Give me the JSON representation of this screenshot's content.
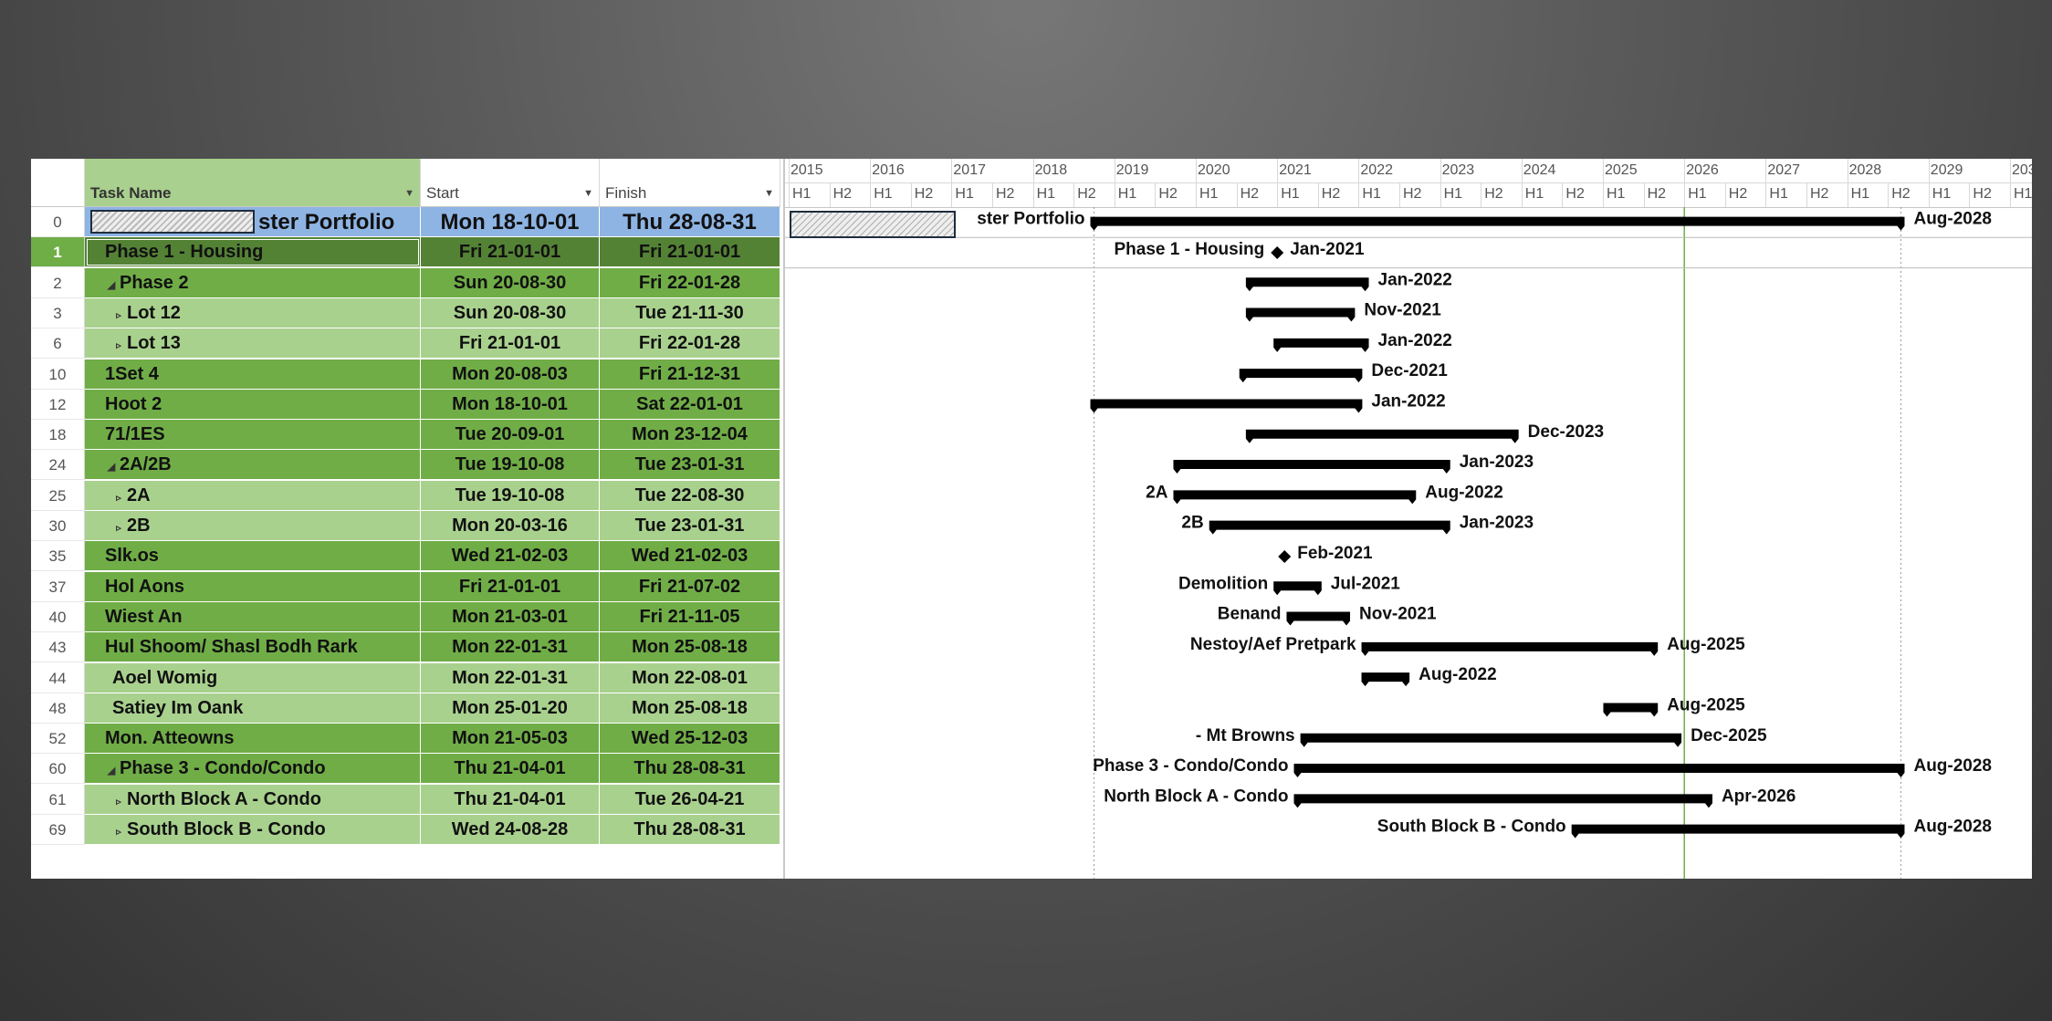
{
  "columns": {
    "task_name": "Task Name",
    "start": "Start",
    "finish": "Finish"
  },
  "timescale": {
    "years": [
      "2015",
      "2016",
      "2017",
      "2018",
      "2019",
      "2020",
      "2021",
      "2022",
      "2023",
      "2024",
      "2025",
      "2026",
      "2027",
      "2028",
      "2029",
      "203"
    ],
    "halves": [
      "H1",
      "H2"
    ]
  },
  "colors": {
    "summary": "#8eb4e3",
    "dark_green": "#70ad47",
    "light_green": "#a9d18e",
    "selected": "#548235",
    "header_green": "#a9d08e"
  },
  "rows": [
    {
      "id": "0",
      "name": "ster Portfolio",
      "start": "Mon 18-10-01",
      "finish": "Thu 28-08-31",
      "style": "summary",
      "indent": 0,
      "toggle": ""
    },
    {
      "id": "1",
      "name": "Phase 1 - Housing",
      "start": "Fri 21-01-01",
      "finish": "Fri 21-01-01",
      "style": "selected",
      "indent": 1,
      "toggle": ""
    },
    {
      "id": "2",
      "name": "Phase 2",
      "start": "Sun 20-08-30",
      "finish": "Fri 22-01-28",
      "style": "dark",
      "indent": 1,
      "toggle": "◢"
    },
    {
      "id": "3",
      "name": "Lot 12",
      "start": "Sun 20-08-30",
      "finish": "Tue 21-11-30",
      "style": "light",
      "indent": 2,
      "toggle": "▹"
    },
    {
      "id": "6",
      "name": "Lot 13",
      "start": "Fri 21-01-01",
      "finish": "Fri 22-01-28",
      "style": "light",
      "indent": 2,
      "toggle": "▹"
    },
    {
      "id": "10",
      "name": "1Set 4",
      "start": "Mon 20-08-03",
      "finish": "Fri 21-12-31",
      "style": "dark",
      "indent": 1,
      "toggle": ""
    },
    {
      "id": "12",
      "name": "Hoot 2",
      "start": "Mon 18-10-01",
      "finish": "Sat 22-01-01",
      "style": "dark",
      "indent": 1,
      "toggle": ""
    },
    {
      "id": "18",
      "name": "71/1ES",
      "start": "Tue 20-09-01",
      "finish": "Mon 23-12-04",
      "style": "dark",
      "indent": 1,
      "toggle": ""
    },
    {
      "id": "24",
      "name": "2A/2B",
      "start": "Tue 19-10-08",
      "finish": "Tue 23-01-31",
      "style": "dark",
      "indent": 1,
      "toggle": "◢"
    },
    {
      "id": "25",
      "name": "2A",
      "start": "Tue 19-10-08",
      "finish": "Tue 22-08-30",
      "style": "light",
      "indent": 2,
      "toggle": "▹"
    },
    {
      "id": "30",
      "name": "2B",
      "start": "Mon 20-03-16",
      "finish": "Tue 23-01-31",
      "style": "light",
      "indent": 2,
      "toggle": "▹"
    },
    {
      "id": "35",
      "name": "Slk.os",
      "start": "Wed 21-02-03",
      "finish": "Wed 21-02-03",
      "style": "dark",
      "indent": 1,
      "toggle": ""
    },
    {
      "id": "37",
      "name": "Hol Aons",
      "start": "Fri 21-01-01",
      "finish": "Fri 21-07-02",
      "style": "dark",
      "indent": 1,
      "toggle": ""
    },
    {
      "id": "40",
      "name": "Wiest An",
      "start": "Mon 21-03-01",
      "finish": "Fri 21-11-05",
      "style": "dark",
      "indent": 1,
      "toggle": ""
    },
    {
      "id": "43",
      "name": "Hul Shoom/ Shasl Bodh Rark",
      "start": "Mon 22-01-31",
      "finish": "Mon 25-08-18",
      "style": "dark",
      "indent": 1,
      "toggle": ""
    },
    {
      "id": "44",
      "name": "Aoel Womig",
      "start": "Mon 22-01-31",
      "finish": "Mon 22-08-01",
      "style": "light",
      "indent": 2,
      "toggle": ""
    },
    {
      "id": "48",
      "name": "Satiey Im Oank",
      "start": "Mon 25-01-20",
      "finish": "Mon 25-08-18",
      "style": "light",
      "indent": 2,
      "toggle": ""
    },
    {
      "id": "52",
      "name": "Mon. Atteowns",
      "start": "Mon 21-05-03",
      "finish": "Wed 25-12-03",
      "style": "dark",
      "indent": 1,
      "toggle": ""
    },
    {
      "id": "60",
      "name": "Phase 3 - Condo/Condo",
      "start": "Thu 21-04-01",
      "finish": "Thu 28-08-31",
      "style": "dark",
      "indent": 1,
      "toggle": "◢"
    },
    {
      "id": "61",
      "name": "North Block A - Condo",
      "start": "Thu 21-04-01",
      "finish": "Tue 26-04-21",
      "style": "light",
      "indent": 2,
      "toggle": "▹"
    },
    {
      "id": "69",
      "name": "South Block B - Condo",
      "start": "Wed 24-08-28",
      "finish": "Thu 28-08-31",
      "style": "light",
      "indent": 2,
      "toggle": "▹"
    }
  ],
  "gantt_bars": [
    {
      "row": 0,
      "start": 2018.75,
      "end": 2028.66,
      "left_label": "ster Portfolio",
      "right_label": "Aug-2028",
      "milestone": false
    },
    {
      "row": 1,
      "start": 2021.0,
      "end": 2021.0,
      "left_label": "Phase 1 - Housing",
      "right_label": "Jan-2021",
      "milestone": true
    },
    {
      "row": 2,
      "start": 2020.66,
      "end": 2022.08,
      "left_label": "",
      "right_label": "Jan-2022",
      "milestone": false
    },
    {
      "row": 3,
      "start": 2020.66,
      "end": 2021.91,
      "left_label": "",
      "right_label": "Nov-2021",
      "milestone": false
    },
    {
      "row": 4,
      "start": 2021.0,
      "end": 2022.08,
      "left_label": "",
      "right_label": "Jan-2022",
      "milestone": false
    },
    {
      "row": 5,
      "start": 2020.58,
      "end": 2022.0,
      "left_label": "",
      "right_label": "Dec-2021",
      "milestone": false
    },
    {
      "row": 6,
      "start": 2018.75,
      "end": 2022.0,
      "left_label": "",
      "right_label": "Jan-2022",
      "milestone": false
    },
    {
      "row": 7,
      "start": 2020.66,
      "end": 2023.92,
      "left_label": "",
      "right_label": "Dec-2023",
      "milestone": false
    },
    {
      "row": 8,
      "start": 2019.77,
      "end": 2023.08,
      "left_label": "",
      "right_label": "Jan-2023",
      "milestone": false
    },
    {
      "row": 9,
      "start": 2019.77,
      "end": 2022.66,
      "left_label": "2A",
      "right_label": "Aug-2022",
      "milestone": false
    },
    {
      "row": 10,
      "start": 2020.21,
      "end": 2023.08,
      "left_label": "2B",
      "right_label": "Jan-2023",
      "milestone": false
    },
    {
      "row": 11,
      "start": 2021.09,
      "end": 2021.09,
      "left_label": "",
      "right_label": "Feb-2021",
      "milestone": true
    },
    {
      "row": 12,
      "start": 2021.0,
      "end": 2021.5,
      "left_label": "Demolition",
      "right_label": "Jul-2021",
      "milestone": false
    },
    {
      "row": 13,
      "start": 2021.16,
      "end": 2021.85,
      "left_label": "Benand",
      "right_label": "Nov-2021",
      "milestone": false
    },
    {
      "row": 14,
      "start": 2022.08,
      "end": 2025.63,
      "left_label": "Nestoy/Aef Pretpark",
      "right_label": "Aug-2025",
      "milestone": false
    },
    {
      "row": 15,
      "start": 2022.08,
      "end": 2022.58,
      "left_label": "",
      "right_label": "Aug-2022",
      "milestone": false
    },
    {
      "row": 16,
      "start": 2025.05,
      "end": 2025.63,
      "left_label": "",
      "right_label": "Aug-2025",
      "milestone": false
    },
    {
      "row": 17,
      "start": 2021.33,
      "end": 2025.92,
      "left_label": "- Mt Browns",
      "right_label": "Dec-2025",
      "milestone": false
    },
    {
      "row": 18,
      "start": 2021.25,
      "end": 2028.66,
      "left_label": "Phase 3 - Condo/Condo",
      "right_label": "Aug-2028",
      "milestone": false
    },
    {
      "row": 19,
      "start": 2021.25,
      "end": 2026.3,
      "left_label": "North Block A - Condo",
      "right_label": "Apr-2026",
      "milestone": false
    },
    {
      "row": 20,
      "start": 2024.66,
      "end": 2028.66,
      "left_label": "South Block B - Condo",
      "right_label": "Aug-2028",
      "milestone": false
    }
  ]
}
